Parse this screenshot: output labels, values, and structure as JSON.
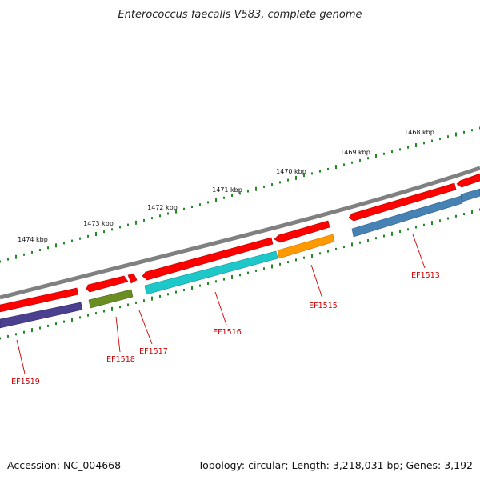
{
  "title": "Enterococcus faecalis V583, complete genome",
  "footer": {
    "accession": "Accession: NC_004668",
    "summary": "Topology: circular; Length: 3,218,031 bp; Genes: 3,192"
  },
  "scale": {
    "ticks": [
      {
        "label": "1468 kbp",
        "kbp": 1468
      },
      {
        "label": "1469 kbp",
        "kbp": 1469
      },
      {
        "label": "1470 kbp",
        "kbp": 1470
      },
      {
        "label": "1471 kbp",
        "kbp": 1471
      },
      {
        "label": "1472 kbp",
        "kbp": 1472
      },
      {
        "label": "1473 kbp",
        "kbp": 1473
      },
      {
        "label": "1474 kbp",
        "kbp": 1474
      }
    ]
  },
  "genes": [
    {
      "label": "EF1519",
      "color": "#4b3f8f",
      "strand": "reverse"
    },
    {
      "label": "EF1518",
      "color": "#6b8e23",
      "strand": "reverse"
    },
    {
      "label": "EF1517",
      "color": "#ff0000",
      "strand": "reverse"
    },
    {
      "label": "EF1516",
      "color": "#1ec8c8",
      "strand": "reverse"
    },
    {
      "label": "EF1515",
      "color": "#ff9900",
      "strand": "reverse"
    },
    {
      "label": "EF1513",
      "color": "#4682b4",
      "strand": "reverse"
    }
  ],
  "colors": {
    "backbone": "#808080",
    "forward_cds": "#ff0000",
    "ticks": "#228b22",
    "labels": "#cc0000"
  }
}
